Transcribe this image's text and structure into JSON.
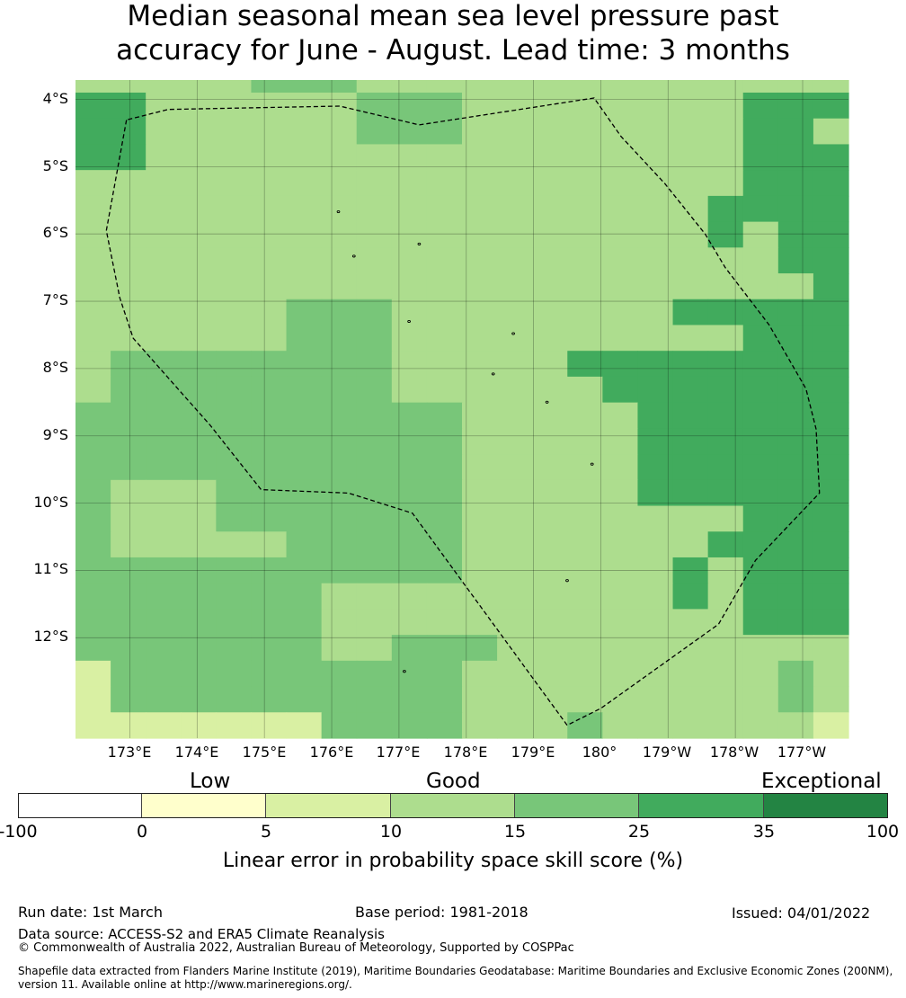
{
  "title": {
    "line1": "Median seasonal mean sea level pressure past",
    "line2": "accuracy for June - August. Lead time: 3 months"
  },
  "map": {
    "rows": [
      "2222233322222222222222",
      "4422222233322222222444",
      "4422222233322222222442",
      "4422222222222222222444",
      "2222222222222222222444",
      "2222222222222222224444",
      "2222222222222222224244",
      "2222222222222222222244",
      "2222222222222222222224",
      "2222223332222222244444",
      "2222223332222222222444",
      "2333333332222244444444",
      "2333333332222224444444",
      "3333333333322222444444",
      "3333333333322222444444",
      "3333333333322222444444",
      "3222333333322222444444",
      "3222333333322222222444",
      "3222223333322222224444",
      "3333333333322222242444",
      "3333333222222222242444",
      "3333333222222222222444",
      "3333333223332222222222",
      "1333333333322222222232",
      "1333333333322222222232",
      "1111111333322232222221"
    ],
    "lat_labels": [
      "4°S",
      "5°S",
      "6°S",
      "7°S",
      "8°S",
      "9°S",
      "10°S",
      "11°S",
      "12°S"
    ],
    "lon_labels": [
      "173°E",
      "174°E",
      "175°E",
      "176°E",
      "177°E",
      "178°E",
      "179°E",
      "180°",
      "179°W",
      "178°W",
      "177°W"
    ],
    "boundary_path": [
      [
        172.97,
        -4.3
      ],
      [
        173.57,
        -4.15
      ],
      [
        176.12,
        -4.1
      ],
      [
        177.3,
        -4.38
      ],
      [
        179.9,
        -3.98
      ],
      [
        180.3,
        -4.55
      ],
      [
        180.95,
        -5.25
      ],
      [
        181.55,
        -6.0
      ],
      [
        181.85,
        -6.5
      ],
      [
        182.5,
        -7.35
      ],
      [
        183.05,
        -8.3
      ],
      [
        183.2,
        -8.9
      ],
      [
        183.25,
        -9.85
      ],
      [
        182.3,
        -10.85
      ],
      [
        181.75,
        -11.8
      ],
      [
        180.0,
        -13.05
      ],
      [
        179.5,
        -13.3
      ],
      [
        177.2,
        -10.15
      ],
      [
        176.25,
        -9.85
      ],
      [
        174.95,
        -9.8
      ],
      [
        174.2,
        -8.85
      ],
      [
        173.05,
        -7.55
      ],
      [
        172.85,
        -6.95
      ],
      [
        172.65,
        -5.95
      ],
      [
        172.95,
        -4.3
      ]
    ],
    "islets": [
      [
        176.1,
        -5.67
      ],
      [
        177.3,
        -6.15
      ],
      [
        176.33,
        -6.33
      ],
      [
        177.15,
        -7.3
      ],
      [
        178.7,
        -7.48
      ],
      [
        178.4,
        -8.08
      ],
      [
        179.2,
        -8.5
      ],
      [
        179.87,
        -9.42
      ],
      [
        179.5,
        -11.15
      ],
      [
        177.08,
        -12.5
      ]
    ]
  },
  "legend": {
    "categories": [
      "Low",
      "Good",
      "Exceptional"
    ],
    "segments": [
      {
        "from": -100,
        "to": 0,
        "color": "#ffffff"
      },
      {
        "from": 0,
        "to": 5,
        "color": "#ffffcc"
      },
      {
        "from": 5,
        "to": 10,
        "color": "#d9f0a3"
      },
      {
        "from": 10,
        "to": 15,
        "color": "#addd8e"
      },
      {
        "from": 15,
        "to": 25,
        "color": "#78c679"
      },
      {
        "from": 25,
        "to": 35,
        "color": "#41ab5d"
      },
      {
        "from": 35,
        "to": 100,
        "color": "#238443"
      }
    ],
    "ticks": [
      "-100",
      "0",
      "5",
      "10",
      "15",
      "25",
      "35",
      "100"
    ],
    "label": "Linear error in probability space skill score (%)"
  },
  "footer": {
    "run_date": "Run date: 1st March",
    "base_period": "Base period: 1981-2018",
    "issued": "Issued: 04/01/2022",
    "data_source": "Data source: ACCESS-S2 and ERA5 Climate Reanalysis",
    "copyright": "© Commonwealth of Australia 2022, Australian Bureau of Meteorology, Supported by COSPPac",
    "shapefile_line1": "Shapefile data extracted from Flanders Marine Institute (2019), Maritime Boundaries Geodatabase: Maritime Boundaries and Exclusive Economic Zones (200NM),",
    "shapefile_line2": "version 11. Available online at http://www.marineregions.org/."
  }
}
